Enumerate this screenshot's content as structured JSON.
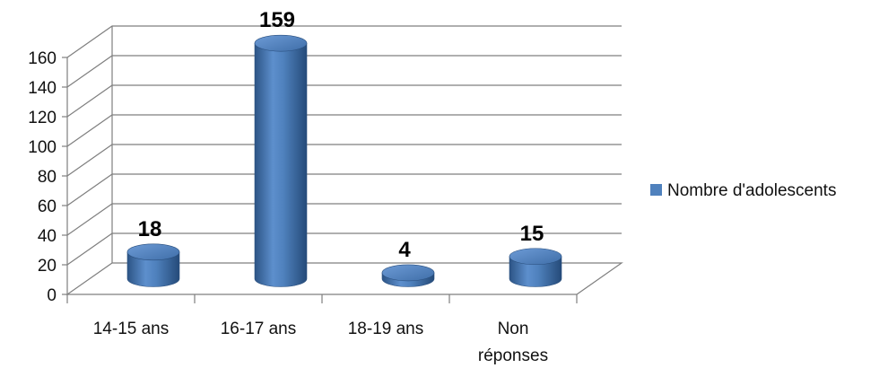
{
  "chart_data": {
    "type": "bar",
    "style": "3d-cylinder",
    "categories": [
      "14-15 ans",
      "16-17 ans",
      "18-19 ans",
      "Non réponses"
    ],
    "series": [
      {
        "name": "Nombre d'adolescents",
        "values": [
          18,
          159,
          4,
          15
        ],
        "color": "#4f81bd"
      }
    ],
    "data_labels": [
      "18",
      "159",
      "4",
      "15"
    ],
    "yticks": [
      "0",
      "20",
      "40",
      "60",
      "80",
      "100",
      "120",
      "140",
      "160"
    ],
    "ylim": [
      0,
      160
    ],
    "grid": true,
    "legend_position": "right"
  }
}
